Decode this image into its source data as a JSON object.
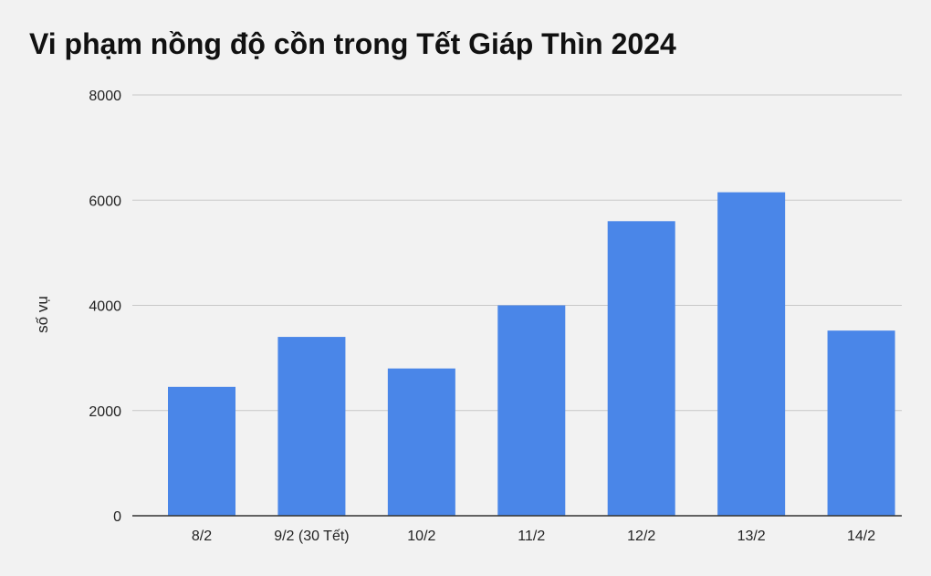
{
  "chart_data": {
    "type": "bar",
    "title": "Vi phạm nồng độ cồn trong Tết Giáp Thìn 2024",
    "xlabel": "",
    "ylabel": "số vụ",
    "categories": [
      "8/2",
      "9/2 (30 Tết)",
      "10/2",
      "11/2",
      "12/2",
      "13/2",
      "14/2"
    ],
    "values": [
      2450,
      3400,
      2800,
      4000,
      5600,
      6150,
      3520
    ],
    "ylim": [
      0,
      8000
    ],
    "yticks": [
      0,
      2000,
      4000,
      6000,
      8000
    ],
    "bar_color": "#4a86e8",
    "grid": true,
    "legend": "none"
  }
}
